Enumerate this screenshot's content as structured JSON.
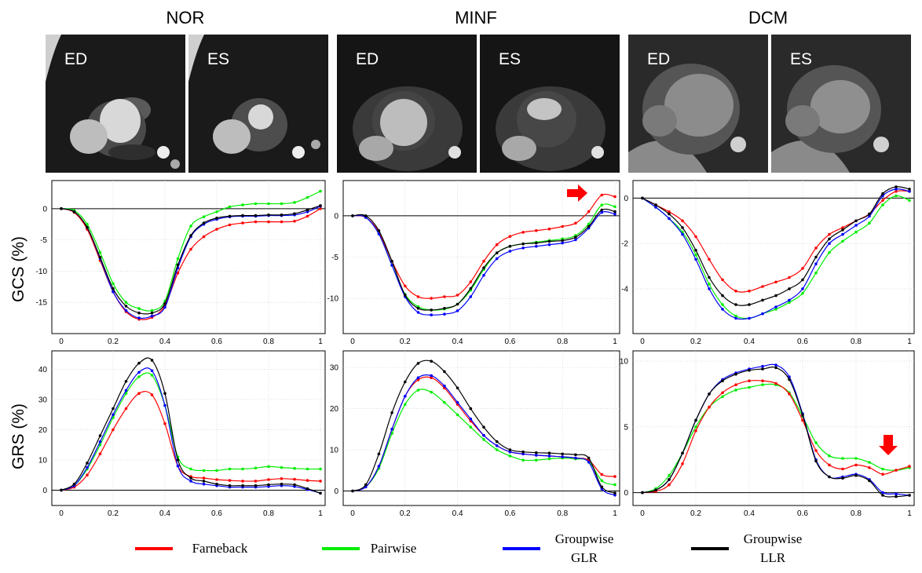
{
  "columns": [
    "NOR",
    "MINF",
    "DCM"
  ],
  "phase_labels": [
    "ED",
    "ES"
  ],
  "row_labels": [
    "GCS (%)",
    "GRS (%)"
  ],
  "legend": [
    {
      "lines": [
        "Farneback"
      ],
      "color": "#ff0000"
    },
    {
      "lines": [
        "Pairwise"
      ],
      "color": "#00ee00"
    },
    {
      "lines": [
        "Groupwise",
        "GLR"
      ],
      "color": "#0000ff"
    },
    {
      "lines": [
        "Groupwise",
        "LLR"
      ],
      "color": "#000000"
    }
  ],
  "colors": {
    "Farneback": "#ff0000",
    "Pairwise": "#00ee00",
    "Groupwise GLR": "#0000ff",
    "Groupwise LLR": "#000000"
  },
  "chart_data": [
    {
      "type": "line",
      "id": "gcs-nor",
      "ylabel": "GCS (%)",
      "x": [
        0,
        0.05,
        0.1,
        0.15,
        0.2,
        0.25,
        0.3,
        0.35,
        0.4,
        0.45,
        0.5,
        0.55,
        0.6,
        0.65,
        0.7,
        0.75,
        0.8,
        0.85,
        0.9,
        0.95,
        1.0
      ],
      "xlim": [
        0,
        1
      ],
      "ylim": [
        -19,
        3.5
      ],
      "xticks": [
        "0",
        "0.2",
        "0.4",
        "0.6",
        "0.8",
        "1"
      ],
      "yticks": [
        "0",
        "-5",
        "-10",
        "-15"
      ],
      "ytick_values": [
        0,
        -5,
        -10,
        -15
      ],
      "series": [
        {
          "name": "Farneback",
          "values": [
            0,
            -0.6,
            -3.3,
            -8.3,
            -13.3,
            -16.5,
            -17.7,
            -17.4,
            -15.5,
            -10.3,
            -6.5,
            -4.5,
            -3.3,
            -2.6,
            -2.3,
            -2.1,
            -2.1,
            -2.1,
            -2.0,
            -1.2,
            0
          ]
        },
        {
          "name": "Pairwise",
          "values": [
            0,
            -0.3,
            -2.5,
            -7.0,
            -12.0,
            -15.0,
            -16.0,
            -16.3,
            -14.8,
            -8.0,
            -2.8,
            -1.3,
            -0.5,
            0.3,
            0.6,
            0.8,
            0.8,
            0.8,
            1.0,
            1.8,
            2.8
          ]
        },
        {
          "name": "Groupwise GLR",
          "values": [
            0,
            -0.5,
            -3.0,
            -8.0,
            -13.3,
            -16.3,
            -17.5,
            -17.2,
            -15.8,
            -9.5,
            -4.5,
            -2.5,
            -1.7,
            -1.3,
            -1.2,
            -1.2,
            -1.1,
            -1.1,
            -1.0,
            -0.5,
            0.4
          ]
        },
        {
          "name": "Groupwise LLR",
          "values": [
            0,
            -0.5,
            -3.0,
            -7.8,
            -12.8,
            -15.6,
            -16.7,
            -16.7,
            -15.2,
            -9.0,
            -4.3,
            -2.3,
            -1.5,
            -1.2,
            -1.1,
            -1.1,
            -1.0,
            -1.0,
            -0.8,
            -0.2,
            0.5
          ]
        }
      ]
    },
    {
      "type": "line",
      "id": "gcs-minf",
      "ylabel": "GCS (%)",
      "x": [
        0,
        0.05,
        0.1,
        0.15,
        0.2,
        0.25,
        0.3,
        0.35,
        0.4,
        0.45,
        0.5,
        0.55,
        0.6,
        0.65,
        0.7,
        0.75,
        0.8,
        0.85,
        0.9,
        0.95,
        1.0
      ],
      "xlim": [
        0,
        1
      ],
      "ylim": [
        -13.5,
        3.5
      ],
      "xticks": [
        "0",
        "0.2",
        "0.4",
        "0.6",
        "0.8",
        "1"
      ],
      "yticks": [
        "0",
        "-5",
        "-10"
      ],
      "ytick_values": [
        0,
        -5,
        -10
      ],
      "series": [
        {
          "name": "Farneback",
          "values": [
            0,
            -0.2,
            -2.0,
            -5.5,
            -8.5,
            -9.8,
            -10.0,
            -9.8,
            -9.6,
            -8.0,
            -5.5,
            -3.5,
            -2.5,
            -2.0,
            -1.8,
            -1.6,
            -1.3,
            -0.9,
            0.5,
            2.5,
            2.3
          ]
        },
        {
          "name": "Pairwise",
          "values": [
            0,
            -0.2,
            -2.2,
            -6.0,
            -9.5,
            -11.0,
            -11.4,
            -11.3,
            -10.7,
            -9.0,
            -6.5,
            -4.5,
            -3.7,
            -3.4,
            -3.2,
            -3.0,
            -2.8,
            -2.4,
            -1.0,
            1.3,
            1.1
          ]
        },
        {
          "name": "Groupwise GLR",
          "values": [
            0,
            -0.2,
            -2.2,
            -6.0,
            -9.8,
            -11.7,
            -12.0,
            -11.9,
            -11.5,
            -9.8,
            -7.2,
            -5.2,
            -4.3,
            -3.9,
            -3.7,
            -3.5,
            -3.3,
            -2.9,
            -1.5,
            0.4,
            0.2
          ]
        },
        {
          "name": "Groupwise LLR",
          "values": [
            0,
            0,
            -1.8,
            -5.5,
            -9.6,
            -11.2,
            -11.4,
            -11.2,
            -10.7,
            -8.8,
            -6.3,
            -4.5,
            -3.7,
            -3.4,
            -3.3,
            -3.1,
            -3.0,
            -2.6,
            -1.3,
            0.7,
            0.5
          ]
        }
      ]
    },
    {
      "type": "line",
      "id": "gcs-dcm",
      "ylabel": "GCS (%)",
      "x": [
        0,
        0.05,
        0.1,
        0.15,
        0.2,
        0.25,
        0.3,
        0.35,
        0.4,
        0.45,
        0.5,
        0.55,
        0.6,
        0.65,
        0.7,
        0.75,
        0.8,
        0.85,
        0.9,
        0.95,
        1.0
      ],
      "xlim": [
        0,
        1
      ],
      "ylim": [
        -5.7,
        0.5
      ],
      "xticks": [
        "0",
        "0.2",
        "0.4",
        "0.6",
        "0.8",
        "1"
      ],
      "yticks": [
        "0",
        "-2",
        "-4"
      ],
      "ytick_values": [
        0,
        -2,
        -4
      ],
      "series": [
        {
          "name": "Farneback",
          "values": [
            0,
            -0.3,
            -0.6,
            -1.0,
            -1.7,
            -2.7,
            -3.6,
            -4.1,
            -4.1,
            -3.9,
            -3.7,
            -3.5,
            -3.1,
            -2.2,
            -1.6,
            -1.3,
            -1.0,
            -0.7,
            -0.1,
            0.3,
            0.3
          ]
        },
        {
          "name": "Pairwise",
          "values": [
            0,
            -0.4,
            -0.9,
            -1.5,
            -2.5,
            -3.8,
            -4.7,
            -5.2,
            -5.3,
            -5.1,
            -4.9,
            -4.6,
            -4.2,
            -3.3,
            -2.4,
            -1.9,
            -1.5,
            -1.1,
            -0.3,
            0.1,
            -0.1
          ]
        },
        {
          "name": "Groupwise GLR",
          "values": [
            0,
            -0.4,
            -0.9,
            -1.6,
            -2.7,
            -4.0,
            -4.9,
            -5.3,
            -5.3,
            -5.1,
            -4.8,
            -4.5,
            -4.0,
            -2.9,
            -2.0,
            -1.6,
            -1.2,
            -0.8,
            0.1,
            0.4,
            0.3
          ]
        },
        {
          "name": "Groupwise LLR",
          "values": [
            0,
            -0.3,
            -0.7,
            -1.3,
            -2.3,
            -3.5,
            -4.3,
            -4.7,
            -4.7,
            -4.5,
            -4.3,
            -4.0,
            -3.6,
            -2.6,
            -1.8,
            -1.4,
            -1.0,
            -0.7,
            0.2,
            0.5,
            0.4
          ]
        }
      ]
    },
    {
      "type": "line",
      "id": "grs-nor",
      "ylabel": "GRS (%)",
      "x": [
        0,
        0.05,
        0.1,
        0.15,
        0.2,
        0.25,
        0.3,
        0.35,
        0.4,
        0.45,
        0.5,
        0.55,
        0.6,
        0.65,
        0.7,
        0.75,
        0.8,
        0.85,
        0.9,
        0.95,
        1.0
      ],
      "xlim": [
        0,
        1
      ],
      "ylim": [
        -3,
        44
      ],
      "xticks": [
        "0",
        "0.2",
        "0.4",
        "0.6",
        "0.8",
        "1"
      ],
      "yticks": [
        "0",
        "10",
        "20",
        "30",
        "40"
      ],
      "ytick_values": [
        0,
        10,
        20,
        30,
        40
      ],
      "series": [
        {
          "name": "Farneback",
          "values": [
            0,
            1.0,
            5.0,
            12.0,
            20.0,
            27.0,
            32.0,
            31.5,
            22.0,
            8.0,
            4.5,
            4.0,
            3.5,
            3.2,
            3.0,
            3.0,
            3.5,
            3.8,
            3.6,
            3.2,
            3.0
          ]
        },
        {
          "name": "Pairwise",
          "values": [
            0,
            1.5,
            7.0,
            15.0,
            24.0,
            32.0,
            37.5,
            38.0,
            28.0,
            11.0,
            7.0,
            6.5,
            6.5,
            7.0,
            7.0,
            7.3,
            7.8,
            7.5,
            7.2,
            7.0,
            7.0
          ]
        },
        {
          "name": "Groupwise GLR",
          "values": [
            0,
            1.5,
            7.5,
            16.0,
            25.0,
            33.0,
            39.0,
            39.5,
            28.0,
            8.0,
            3.0,
            2.0,
            1.5,
            1.0,
            1.0,
            1.0,
            1.2,
            1.5,
            1.2,
            0.2,
            -1.0
          ]
        },
        {
          "name": "Groupwise LLR",
          "values": [
            0,
            2.0,
            9.0,
            18.0,
            27.0,
            36.0,
            42.0,
            43.0,
            32.0,
            10.0,
            4.0,
            3.0,
            2.0,
            1.5,
            1.5,
            1.5,
            1.8,
            2.0,
            1.8,
            0.5,
            -1.0
          ]
        }
      ]
    },
    {
      "type": "line",
      "id": "grs-minf",
      "ylabel": "GRS (%)",
      "x": [
        0,
        0.05,
        0.1,
        0.15,
        0.2,
        0.25,
        0.3,
        0.35,
        0.4,
        0.45,
        0.5,
        0.55,
        0.6,
        0.65,
        0.7,
        0.75,
        0.8,
        0.85,
        0.9,
        0.95,
        1.0
      ],
      "xlim": [
        0,
        1
      ],
      "ylim": [
        -2,
        32.5
      ],
      "xticks": [
        "0",
        "0.2",
        "0.4",
        "0.6",
        "0.8",
        "1"
      ],
      "yticks": [
        "0",
        "10",
        "20",
        "30"
      ],
      "ytick_values": [
        0,
        10,
        20,
        30
      ],
      "series": [
        {
          "name": "Farneback",
          "values": [
            0,
            1.0,
            6.0,
            15.0,
            23.0,
            27.0,
            27.5,
            25.0,
            21.0,
            17.0,
            13.5,
            11.0,
            9.5,
            9.0,
            8.7,
            8.5,
            8.3,
            8.0,
            7.5,
            4.0,
            3.5
          ]
        },
        {
          "name": "Pairwise",
          "values": [
            0,
            1.0,
            5.5,
            14.0,
            21.0,
            24.5,
            24.0,
            21.5,
            18.5,
            15.5,
            12.5,
            10.0,
            8.5,
            7.5,
            7.5,
            7.8,
            8.0,
            7.8,
            7.2,
            2.5,
            1.5
          ]
        },
        {
          "name": "Groupwise GLR",
          "values": [
            0,
            1.0,
            6.0,
            15.0,
            23.0,
            27.5,
            28.0,
            25.5,
            21.5,
            17.5,
            13.5,
            11.0,
            9.5,
            9.0,
            8.7,
            8.5,
            8.3,
            8.0,
            7.0,
            0.5,
            -1.0
          ]
        },
        {
          "name": "Groupwise LLR",
          "values": [
            0,
            1.5,
            9.0,
            19.0,
            26.5,
            31.0,
            31.5,
            29.0,
            25.0,
            20.0,
            15.5,
            12.0,
            10.0,
            9.5,
            9.3,
            9.2,
            9.0,
            8.8,
            8.0,
            1.0,
            -0.5
          ]
        }
      ]
    },
    {
      "type": "line",
      "id": "grs-dcm",
      "ylabel": "GRS (%)",
      "x": [
        0,
        0.05,
        0.1,
        0.15,
        0.2,
        0.25,
        0.3,
        0.35,
        0.4,
        0.45,
        0.5,
        0.55,
        0.6,
        0.65,
        0.7,
        0.75,
        0.8,
        0.85,
        0.9,
        0.95,
        1.0
      ],
      "xlim": [
        0,
        1
      ],
      "ylim": [
        -0.5,
        10.3
      ],
      "xticks": [
        "0",
        "0.2",
        "0.4",
        "0.6",
        "0.8",
        "1"
      ],
      "yticks": [
        "0",
        "5",
        "10"
      ],
      "ytick_values": [
        0,
        5,
        10
      ],
      "series": [
        {
          "name": "Farneback",
          "values": [
            0,
            0.1,
            0.6,
            2.2,
            4.7,
            6.5,
            7.6,
            8.2,
            8.5,
            8.5,
            8.3,
            7.5,
            5.5,
            3.2,
            2.1,
            1.8,
            2.1,
            1.9,
            1.4,
            1.7,
            2.0
          ]
        },
        {
          "name": "Pairwise",
          "values": [
            0,
            0.3,
            1.3,
            3.0,
            5.0,
            6.5,
            7.3,
            7.8,
            8.0,
            8.2,
            8.2,
            7.6,
            5.8,
            3.8,
            2.8,
            2.6,
            2.6,
            2.3,
            1.8,
            1.7,
            1.9
          ]
        },
        {
          "name": "Groupwise GLR",
          "values": [
            0,
            0.2,
            1.0,
            3.0,
            5.5,
            7.5,
            8.6,
            9.1,
            9.4,
            9.6,
            9.7,
            8.8,
            6.0,
            2.5,
            1.2,
            1.2,
            1.4,
            1.0,
            0,
            -0.1,
            -0.2
          ]
        },
        {
          "name": "Groupwise LLR",
          "values": [
            0,
            0.2,
            1.0,
            3.0,
            5.5,
            7.5,
            8.5,
            9.0,
            9.3,
            9.4,
            9.5,
            8.6,
            5.9,
            2.4,
            1.2,
            1.1,
            1.3,
            0.9,
            -0.2,
            -0.3,
            -0.2
          ]
        }
      ]
    }
  ]
}
